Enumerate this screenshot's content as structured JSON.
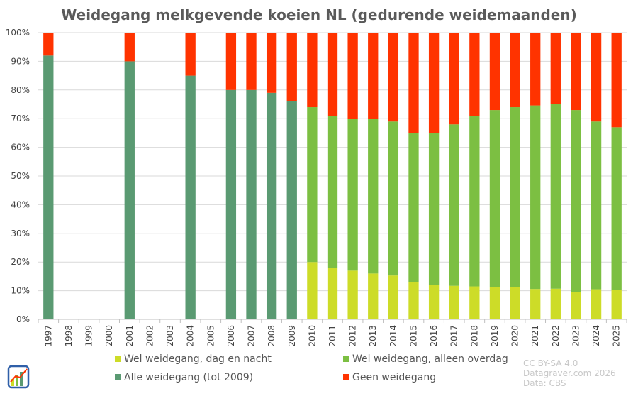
{
  "chart_data": {
    "type": "bar",
    "stacked": true,
    "title": "Weidegang melkgevende koeien NL (gedurende weidemaanden)",
    "categories": [
      "1997",
      "1998",
      "1999",
      "2000",
      "2001",
      "2002",
      "2003",
      "2004",
      "2005",
      "2006",
      "2007",
      "2008",
      "2009",
      "2010",
      "2011",
      "2012",
      "2013",
      "2014",
      "2015",
      "2016",
      "2017",
      "2018",
      "2019",
      "2020",
      "2021",
      "2022",
      "2023",
      "2024",
      "2025"
    ],
    "ylim": [
      0,
      100
    ],
    "yticks": [
      "0%",
      "10%",
      "20%",
      "30%",
      "40%",
      "50%",
      "60%",
      "70%",
      "80%",
      "90%",
      "100%"
    ],
    "grid": true,
    "legend_position": "bottom",
    "series": [
      {
        "name": "Wel weidegang, dag en nacht",
        "color": "#cddc28",
        "values": [
          null,
          null,
          null,
          null,
          null,
          null,
          null,
          null,
          null,
          null,
          null,
          null,
          null,
          20,
          18,
          17,
          16,
          15.3,
          13,
          12,
          11.7,
          11.5,
          11.2,
          11.3,
          10.6,
          10.7,
          9.6,
          10.5,
          10.2
        ]
      },
      {
        "name": "Wel weidegang, alleen overdag",
        "color": "#7cbf42",
        "values": [
          null,
          null,
          null,
          null,
          null,
          null,
          null,
          null,
          null,
          null,
          null,
          null,
          null,
          54,
          53,
          53,
          54,
          53.7,
          52,
          53,
          56.3,
          59.5,
          61.8,
          62.7,
          64,
          64.3,
          63.4,
          58.5,
          56.8
        ]
      },
      {
        "name": "Alle weidegang (tot 2009)",
        "color": "#5a9a72",
        "values": [
          92,
          null,
          null,
          null,
          90,
          null,
          null,
          85,
          null,
          80,
          80,
          79,
          76,
          null,
          null,
          null,
          null,
          null,
          null,
          null,
          null,
          null,
          null,
          null,
          null,
          null,
          null,
          null,
          null
        ]
      },
      {
        "name": "Geen weidegang",
        "color": "#ff3300",
        "values": [
          8,
          null,
          null,
          null,
          10,
          null,
          null,
          15,
          null,
          20,
          20,
          21,
          24,
          26,
          29,
          30,
          30,
          31,
          35,
          35,
          32,
          29,
          27,
          26,
          25.4,
          25,
          27,
          31,
          33
        ]
      }
    ],
    "legend_order": [
      0,
      1,
      2,
      3
    ]
  },
  "credits": [
    "CC BY-SA 4.0",
    "Datagraver.com 2026",
    "Data: CBS"
  ],
  "logo": {
    "icon": "datagraver-logo-icon",
    "accent": "#2f5fa8"
  }
}
